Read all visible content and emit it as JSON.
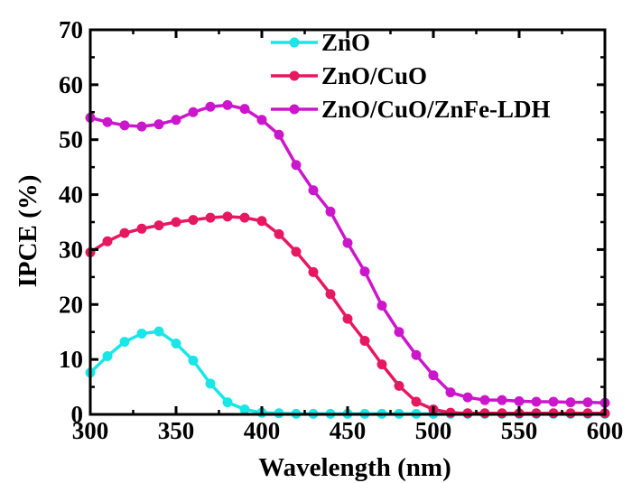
{
  "chart_data": {
    "type": "line",
    "title": "",
    "xlabel": "Wavelength (nm)",
    "ylabel": "IPCE (%)",
    "xlim": [
      300,
      600
    ],
    "ylim": [
      0,
      70
    ],
    "xticks": [
      300,
      350,
      400,
      450,
      500,
      550,
      600
    ],
    "yticks": [
      0,
      10,
      20,
      30,
      40,
      50,
      60,
      70
    ],
    "xtick_labels": [
      "300",
      "350",
      "400",
      "450",
      "500",
      "550",
      "600"
    ],
    "ytick_labels": [
      "0",
      "10",
      "20",
      "30",
      "40",
      "50",
      "60",
      "70"
    ],
    "grid": false,
    "legend_position": "top-right",
    "x": [
      300,
      310,
      320,
      330,
      340,
      350,
      360,
      370,
      380,
      390,
      400,
      410,
      420,
      430,
      440,
      450,
      460,
      470,
      480,
      490,
      500,
      510,
      520,
      530,
      540,
      550,
      560,
      570,
      580,
      590,
      600
    ],
    "series": [
      {
        "name": "ZnO",
        "color": "#19e6e6",
        "values": [
          7.6,
          10.6,
          13.2,
          14.7,
          15.1,
          12.9,
          9.8,
          5.6,
          2.2,
          0.9,
          0.3,
          0.2,
          0.1,
          0.1,
          0.1,
          0.1,
          0.1,
          0.1,
          0.1,
          0.1,
          0.1,
          0.1,
          0.1,
          0.1,
          0.1,
          0.1,
          0.1,
          0.1,
          0.1,
          0.1,
          0.1
        ]
      },
      {
        "name": "ZnO/CuO",
        "color": "#e6185f",
        "values": [
          29.5,
          31.5,
          33.0,
          33.8,
          34.4,
          35.0,
          35.4,
          35.8,
          36.0,
          35.8,
          35.2,
          32.8,
          29.6,
          25.9,
          21.9,
          17.4,
          13.4,
          9.1,
          5.2,
          2.3,
          0.9,
          0.3,
          0.2,
          0.2,
          0.2,
          0.2,
          0.2,
          0.2,
          0.2,
          0.2,
          0.2
        ]
      },
      {
        "name": "ZnO/CuO/ZnFe-LDH",
        "color": "#cc16cc",
        "values": [
          54.0,
          53.2,
          52.6,
          52.4,
          52.8,
          53.6,
          55.0,
          56.0,
          56.3,
          55.6,
          53.6,
          50.9,
          45.4,
          40.8,
          36.9,
          31.2,
          26.0,
          19.8,
          15.0,
          10.8,
          7.1,
          4.0,
          3.1,
          2.6,
          2.6,
          2.4,
          2.3,
          2.3,
          2.2,
          2.2,
          2.1
        ]
      }
    ]
  }
}
